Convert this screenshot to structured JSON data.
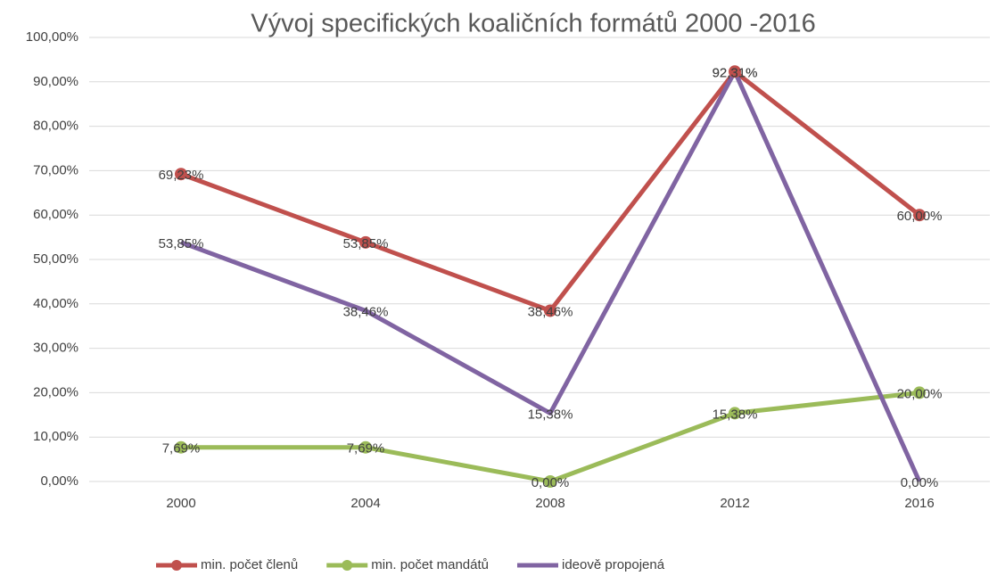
{
  "chart_data": {
    "type": "line",
    "title": "Vývoj specifických koaličních formátů 2000 -2016",
    "categories": [
      "2000",
      "2004",
      "2008",
      "2012",
      "2016"
    ],
    "series": [
      {
        "name": "min. počet členů",
        "color": "#c0504d",
        "marker": true,
        "values": [
          69.23,
          53.85,
          38.46,
          92.31,
          60.0
        ],
        "value_labels": [
          "69,23%",
          "53,85%",
          "38,46%",
          "92,31%",
          "60,00%"
        ]
      },
      {
        "name": "min. počet mandátů",
        "color": "#9bbb59",
        "marker": true,
        "values": [
          7.69,
          7.69,
          0,
          15.38,
          20.0
        ],
        "value_labels": [
          "7,69%",
          "7,69%",
          "0,00%",
          "15,38%",
          "20,00%"
        ]
      },
      {
        "name": "ideově propojená",
        "color": "#8064a2",
        "marker": false,
        "values": [
          53.85,
          38.46,
          15.38,
          92.31,
          0
        ],
        "value_labels": [
          "53,85%",
          "38,46%",
          "15,38%",
          "92,31%",
          "0,00%"
        ]
      }
    ],
    "ylim": [
      0,
      100
    ],
    "yticks": [
      {
        "value": 0,
        "label": "0,00%"
      },
      {
        "value": 10,
        "label": "10,00%"
      },
      {
        "value": 20,
        "label": "20,00%"
      },
      {
        "value": 30,
        "label": "30,00%"
      },
      {
        "value": 40,
        "label": "40,00%"
      },
      {
        "value": 50,
        "label": "50,00%"
      },
      {
        "value": 60,
        "label": "60,00%"
      },
      {
        "value": 70,
        "label": "70,00%"
      },
      {
        "value": 80,
        "label": "80,00%"
      },
      {
        "value": 90,
        "label": "90,00%"
      },
      {
        "value": 100,
        "label": "100,00%"
      }
    ],
    "grid": true,
    "legend": "bottom"
  }
}
